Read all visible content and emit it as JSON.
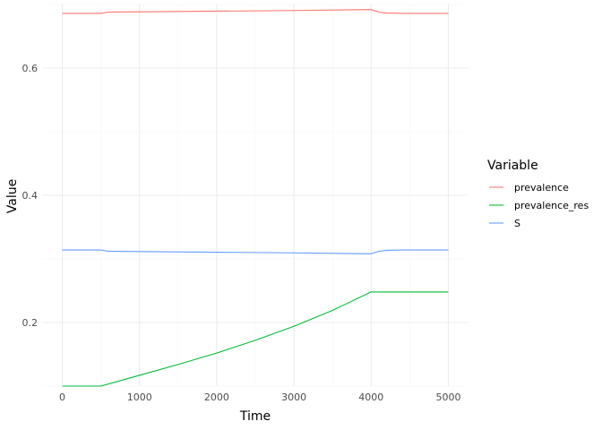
{
  "chart_data": {
    "type": "line",
    "xlabel": "Time",
    "ylabel": "Value",
    "xlim": [
      -250,
      5250
    ],
    "ylim": [
      0.1,
      0.7
    ],
    "x_ticks": [
      0,
      1000,
      2000,
      3000,
      4000,
      5000
    ],
    "x_tick_labels": [
      "0",
      "1000",
      "2000",
      "3000",
      "4000",
      "5000"
    ],
    "x_minor_ticks": [
      500,
      1500,
      2500,
      3500,
      4500
    ],
    "y_ticks": [
      0.2,
      0.4,
      0.6
    ],
    "y_tick_labels": [
      "0.2",
      "0.4",
      "0.6"
    ],
    "y_minor_ticks": [
      0.1,
      0.3,
      0.5,
      0.7
    ],
    "grid": true,
    "legend": {
      "title": "Variable",
      "position": "right"
    },
    "series": [
      {
        "name": "prevalence",
        "color": "#F8766D",
        "x": [
          0,
          500,
          600,
          1000,
          2000,
          3000,
          4000,
          4100,
          4200,
          4400,
          5000
        ],
        "y": [
          0.686,
          0.686,
          0.688,
          0.6885,
          0.6895,
          0.6905,
          0.692,
          0.688,
          0.6865,
          0.686,
          0.686
        ]
      },
      {
        "name": "prevalence_res",
        "color": "#00BA38",
        "x": [
          0,
          500,
          1000,
          1500,
          2000,
          2500,
          3000,
          3500,
          4000,
          4500,
          5000
        ],
        "y": [
          0.1,
          0.1,
          0.117,
          0.134,
          0.152,
          0.172,
          0.194,
          0.219,
          0.248,
          0.248,
          0.248
        ]
      },
      {
        "name": "S",
        "color": "#619CFF",
        "x": [
          0,
          500,
          600,
          1000,
          2000,
          3000,
          4000,
          4100,
          4200,
          4400,
          5000
        ],
        "y": [
          0.314,
          0.314,
          0.312,
          0.3115,
          0.3105,
          0.3095,
          0.308,
          0.312,
          0.3135,
          0.314,
          0.314
        ]
      }
    ]
  }
}
